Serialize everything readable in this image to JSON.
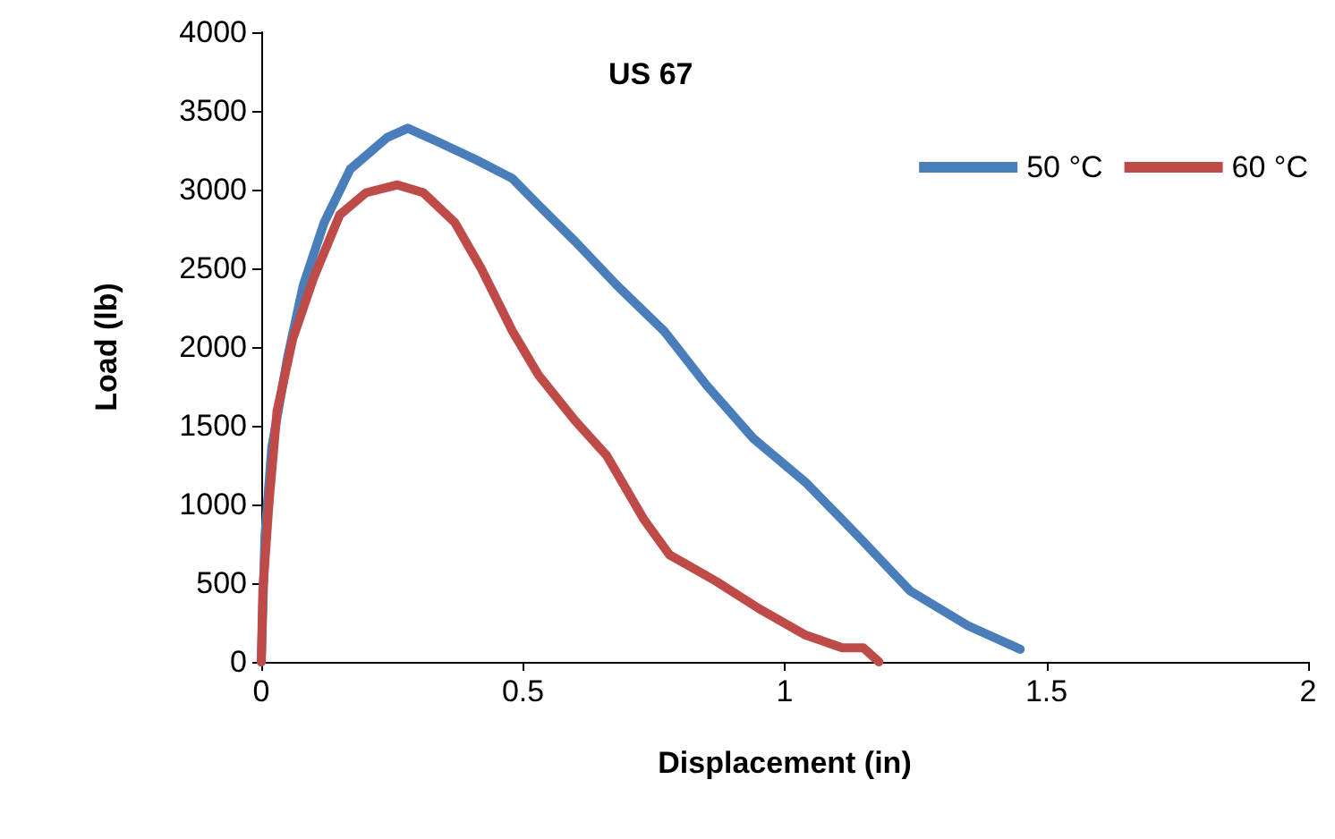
{
  "chart_data": {
    "type": "line",
    "title": "US 67",
    "xlabel": "Displacement (in)",
    "ylabel": "Load (lb)",
    "xlim": [
      0,
      2
    ],
    "xticks": [
      0,
      0.5,
      1,
      1.5,
      2
    ],
    "ylim": [
      0,
      4000
    ],
    "yticks": [
      0,
      500,
      1000,
      1500,
      2000,
      2500,
      3000,
      3500,
      4000
    ],
    "grid": false,
    "legend": "top right",
    "marker": "none",
    "line_style": "solid",
    "series": [
      {
        "name": "50 °C",
        "color": "#4a7ebb",
        "x": [
          0,
          0.007,
          0.02,
          0.05,
          0.08,
          0.12,
          0.17,
          0.24,
          0.28,
          0.34,
          0.41,
          0.48,
          0.53,
          0.6,
          0.68,
          0.77,
          0.85,
          0.94,
          1.04,
          1.14,
          1.24,
          1.35,
          1.45
        ],
        "values": [
          0,
          800,
          1360,
          1930,
          2390,
          2790,
          3130,
          3330,
          3390,
          3300,
          3190,
          3070,
          2900,
          2670,
          2390,
          2100,
          1760,
          1420,
          1140,
          800,
          450,
          230,
          80
        ]
      },
      {
        "name": "60 °C",
        "color": "#be4b48",
        "x": [
          0,
          0.003,
          0.015,
          0.03,
          0.06,
          0.1,
          0.15,
          0.2,
          0.26,
          0.31,
          0.37,
          0.42,
          0.48,
          0.53,
          0.6,
          0.66,
          0.73,
          0.78,
          0.87,
          0.95,
          1.04,
          1.11,
          1.15,
          1.18
        ],
        "values": [
          0,
          450,
          1020,
          1590,
          2050,
          2440,
          2840,
          2980,
          3030,
          2980,
          2790,
          2500,
          2100,
          1820,
          1530,
          1310,
          910,
          680,
          510,
          340,
          170,
          90,
          90,
          0
        ]
      }
    ]
  }
}
